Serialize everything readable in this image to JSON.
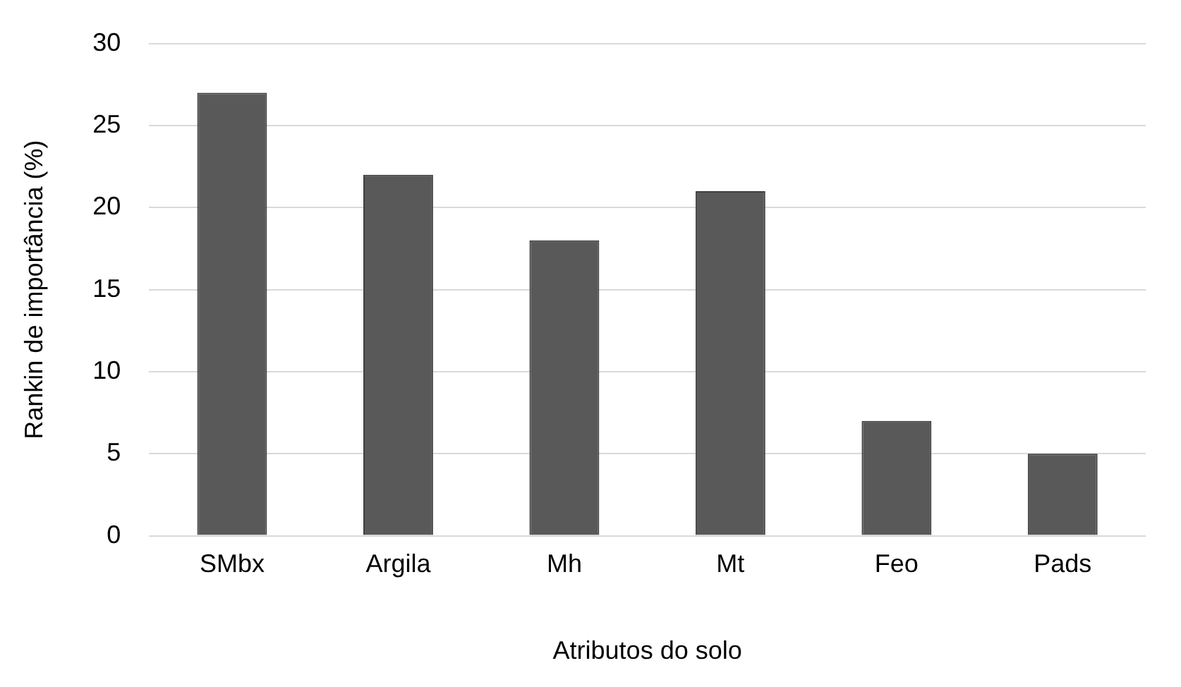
{
  "chart_data": {
    "type": "bar",
    "xlabel": "Atributos do solo",
    "ylabel": "Rankin de importância (%)",
    "categories": [
      "SMbx",
      "Argila",
      "Mh",
      "Mt",
      "Feo",
      "Pads"
    ],
    "values": [
      27,
      22,
      18,
      21,
      7,
      5
    ],
    "color": "#595959",
    "ylim": [
      0,
      30
    ],
    "yticks": [
      0,
      5,
      10,
      15,
      20,
      25,
      30
    ],
    "grid": "y"
  }
}
